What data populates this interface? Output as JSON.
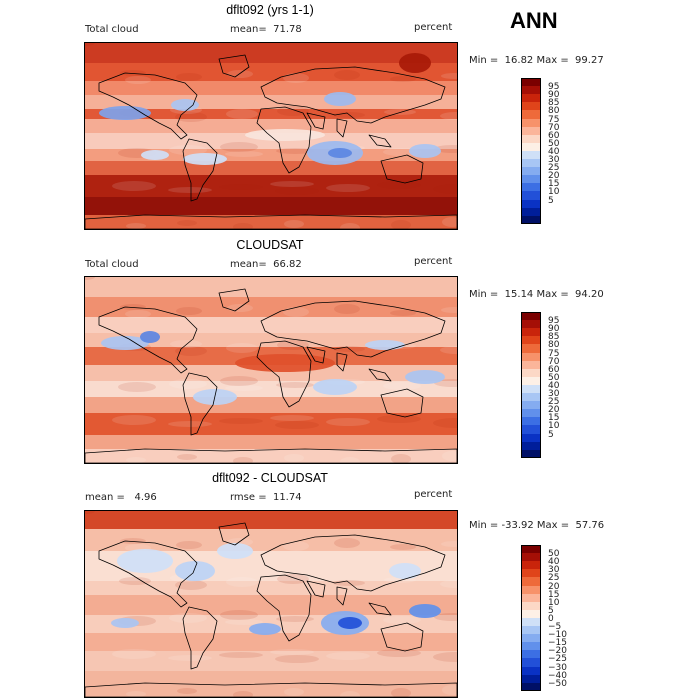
{
  "season": "ANN",
  "panels": [
    {
      "title": "dflt092 (yrs 1-1)",
      "left_label": "Total cloud",
      "mid_label": "mean=  71.78",
      "units": "percent",
      "minmax": "Min =  16.82 Max =  99.27",
      "colorbar": {
        "colors": [
          "#7a0000",
          "#a50f06",
          "#c9240b",
          "#e0441a",
          "#ee6a3a",
          "#f7926a",
          "#fbb59a",
          "#fcd8c6",
          "#fdf0e6",
          "#cfe0f7",
          "#a8c6f4",
          "#85acf0",
          "#6190eb",
          "#3c6fe4",
          "#2250d8",
          "#0a32c4",
          "#001e9a",
          "#001066"
        ],
        "labels": [
          "95",
          "90",
          "85",
          "80",
          "75",
          "70",
          "60",
          "50",
          "40",
          "30",
          "25",
          "20",
          "15",
          "10",
          "5"
        ],
        "label_start_index": 1
      },
      "map_theme": "warm"
    },
    {
      "title": "CLOUDSAT",
      "left_label": "Total cloud",
      "mid_label": "mean=  66.82",
      "units": "percent",
      "minmax": "Min =  15.14 Max =  94.20",
      "colorbar": {
        "colors": [
          "#7a0000",
          "#a50f06",
          "#c9240b",
          "#e0441a",
          "#ee6a3a",
          "#f7926a",
          "#fbb59a",
          "#fcd8c6",
          "#fdf0e6",
          "#cfe0f7",
          "#a8c6f4",
          "#85acf0",
          "#6190eb",
          "#3c6fe4",
          "#2250d8",
          "#0a32c4",
          "#001e9a",
          "#001066"
        ],
        "labels": [
          "95",
          "90",
          "85",
          "80",
          "75",
          "70",
          "60",
          "50",
          "40",
          "30",
          "25",
          "20",
          "15",
          "10",
          "5"
        ],
        "label_start_index": 1
      },
      "map_theme": "mild"
    },
    {
      "title": "dflt092 - CLOUDSAT",
      "left_label": "mean =   4.96",
      "mid_label": "rmse =  11.74",
      "units": "percent",
      "minmax": "Min = -33.92 Max =  57.76",
      "colorbar": {
        "colors": [
          "#7a0000",
          "#a50f06",
          "#c9240b",
          "#e0441a",
          "#ee6a3a",
          "#f7926a",
          "#fbb59a",
          "#fcd8c6",
          "#fdf0e6",
          "#cfe0f7",
          "#a8c6f4",
          "#85acf0",
          "#6190eb",
          "#3c6fe4",
          "#2250d8",
          "#0a32c4",
          "#001e9a",
          "#001066"
        ],
        "labels": [
          "50",
          "40",
          "30",
          "25",
          "20",
          "15",
          "10",
          "5",
          "0",
          "−5",
          "−10",
          "−15",
          "−20",
          "−25",
          "−30",
          "−40",
          "−50"
        ],
        "label_start_index": 1
      },
      "map_theme": "diff"
    }
  ]
}
